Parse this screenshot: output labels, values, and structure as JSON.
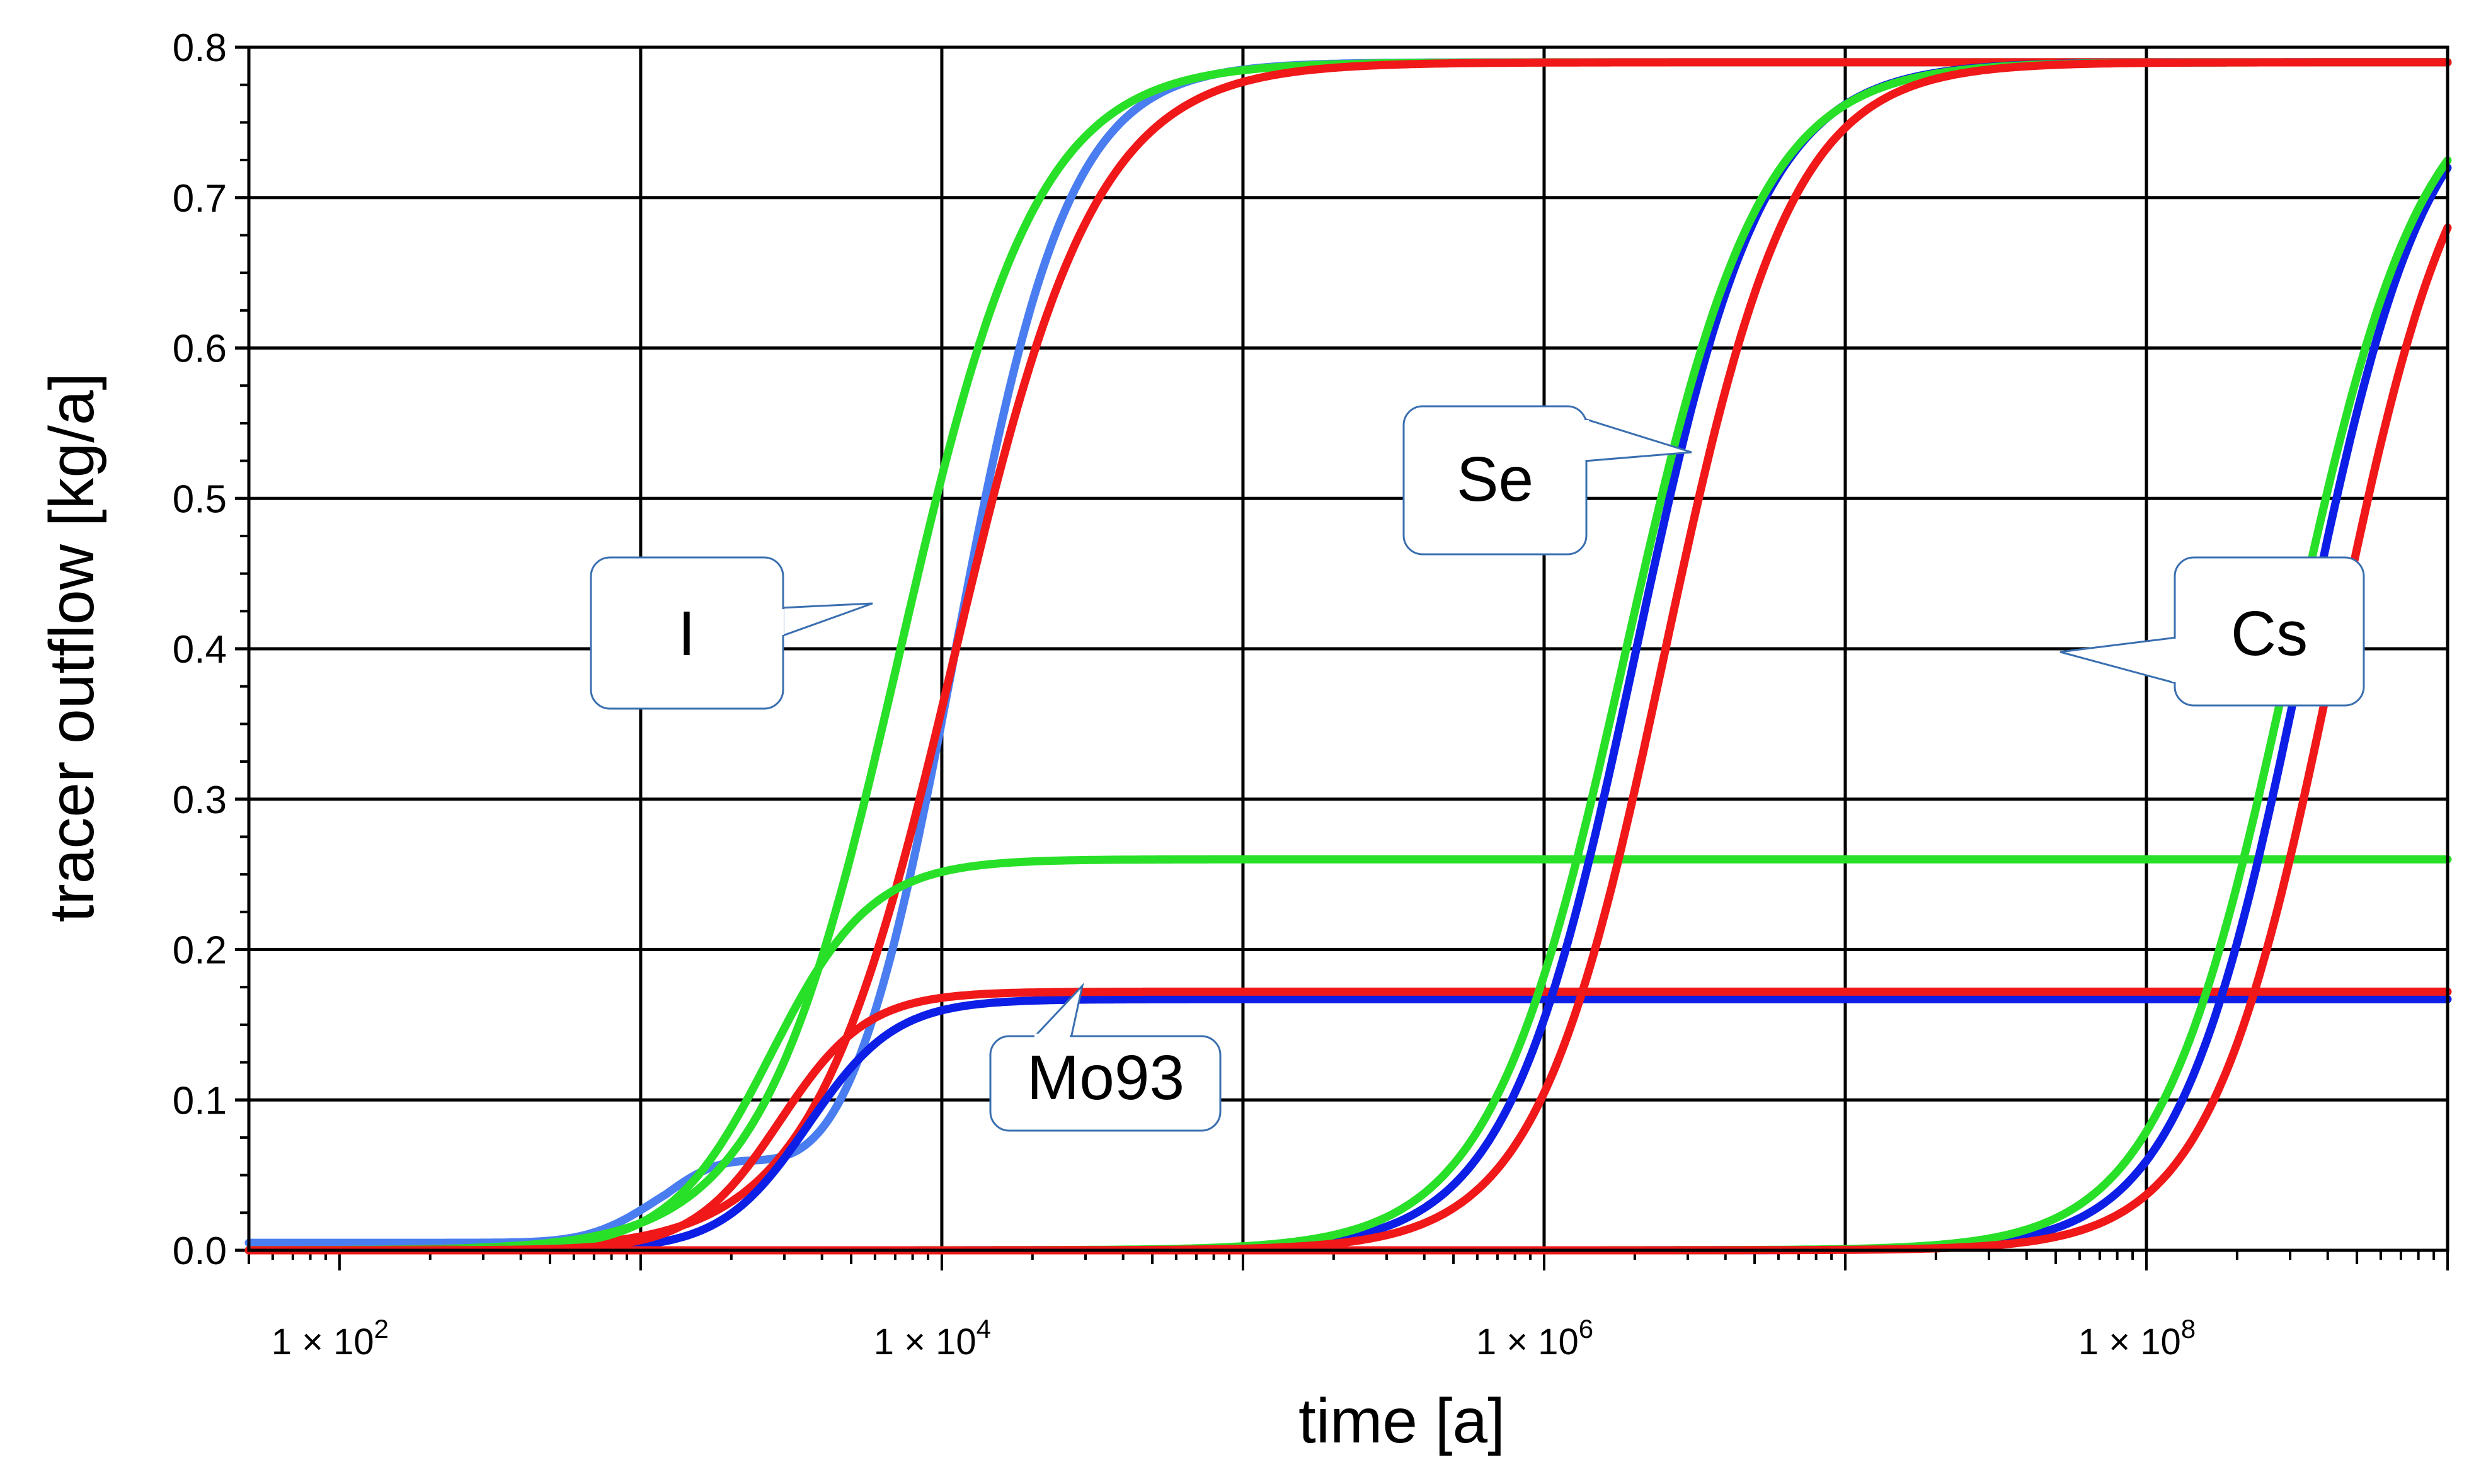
{
  "chart_data": {
    "type": "line",
    "title": "",
    "xlabel": "time [a]",
    "ylabel": "tracer outflow [kg/a]",
    "xscale": "log",
    "xlim": [
      50,
      1000000000
    ],
    "ylim": [
      0,
      0.8
    ],
    "grid": true,
    "x_ticks": [
      {
        "value": 100,
        "base": "1 × 10",
        "exp": "2"
      },
      {
        "value": 10000,
        "base": "1 × 10",
        "exp": "4"
      },
      {
        "value": 1000000,
        "base": "1 × 10",
        "exp": "6"
      },
      {
        "value": 100000000,
        "base": "1 × 10",
        "exp": "8"
      }
    ],
    "y_ticks": [
      "0.0",
      "0.1",
      "0.2",
      "0.3",
      "0.4",
      "0.5",
      "0.6",
      "0.7",
      "0.8"
    ],
    "colors": {
      "blue": "#0d1fe6",
      "light_blue": "#4a7df0",
      "green": "#29e029",
      "red": "#f01818"
    },
    "annotations": [
      {
        "label": "I",
        "target_x": 8000,
        "target_y": 0.43
      },
      {
        "label": "Se",
        "target_x": 2500000,
        "target_y": 0.53
      },
      {
        "label": "Cs",
        "target_x": 450000000,
        "target_y": 0.4
      },
      {
        "label": "Mo93",
        "target_x": 30000,
        "target_y": 0.172
      }
    ],
    "series": [
      {
        "name": "I",
        "color_key": "light_blue",
        "plateau": 0.79,
        "midpoint": 11000,
        "steepness": 2.3,
        "base": 0.005,
        "bump": {
          "center": 1800,
          "height": 0.045,
          "width": 0.3
        }
      },
      {
        "name": "I",
        "color_key": "green",
        "plateau": 0.79,
        "midpoint": 7200,
        "steepness": 1.9,
        "base": 0.0
      },
      {
        "name": "I",
        "color_key": "red",
        "plateau": 0.79,
        "midpoint": 11000,
        "steepness": 1.85,
        "base": 0.0
      },
      {
        "name": "Mo93",
        "color_key": "blue",
        "plateau": 0.167,
        "midpoint": 3600,
        "steepness": 3.0,
        "base": 0.0
      },
      {
        "name": "Mo93",
        "color_key": "green",
        "plateau": 0.26,
        "midpoint": 2700,
        "steepness": 2.6,
        "base": 0.0
      },
      {
        "name": "Mo93",
        "color_key": "red",
        "plateau": 0.172,
        "midpoint": 2900,
        "steepness": 3.0,
        "base": 0.0
      },
      {
        "name": "Se",
        "color_key": "blue",
        "plateau": 0.79,
        "midpoint": 2000000,
        "steepness": 2.05,
        "base": 0.0
      },
      {
        "name": "Se",
        "color_key": "green",
        "plateau": 0.79,
        "midpoint": 1850000,
        "steepness": 1.95,
        "base": 0.0
      },
      {
        "name": "Se",
        "color_key": "red",
        "plateau": 0.79,
        "midpoint": 2500000,
        "steepness": 2.05,
        "base": 0.0
      },
      {
        "name": "Cs",
        "color_key": "blue",
        "plateau": 0.79,
        "midpoint": 330000000,
        "steepness": 2.1,
        "base": 0.0
      },
      {
        "name": "Cs",
        "color_key": "green",
        "plateau": 0.79,
        "midpoint": 300000000,
        "steepness": 2.0,
        "base": 0.0
      },
      {
        "name": "Cs",
        "color_key": "red",
        "plateau": 0.79,
        "midpoint": 420000000,
        "steepness": 2.1,
        "base": 0.0
      }
    ]
  }
}
